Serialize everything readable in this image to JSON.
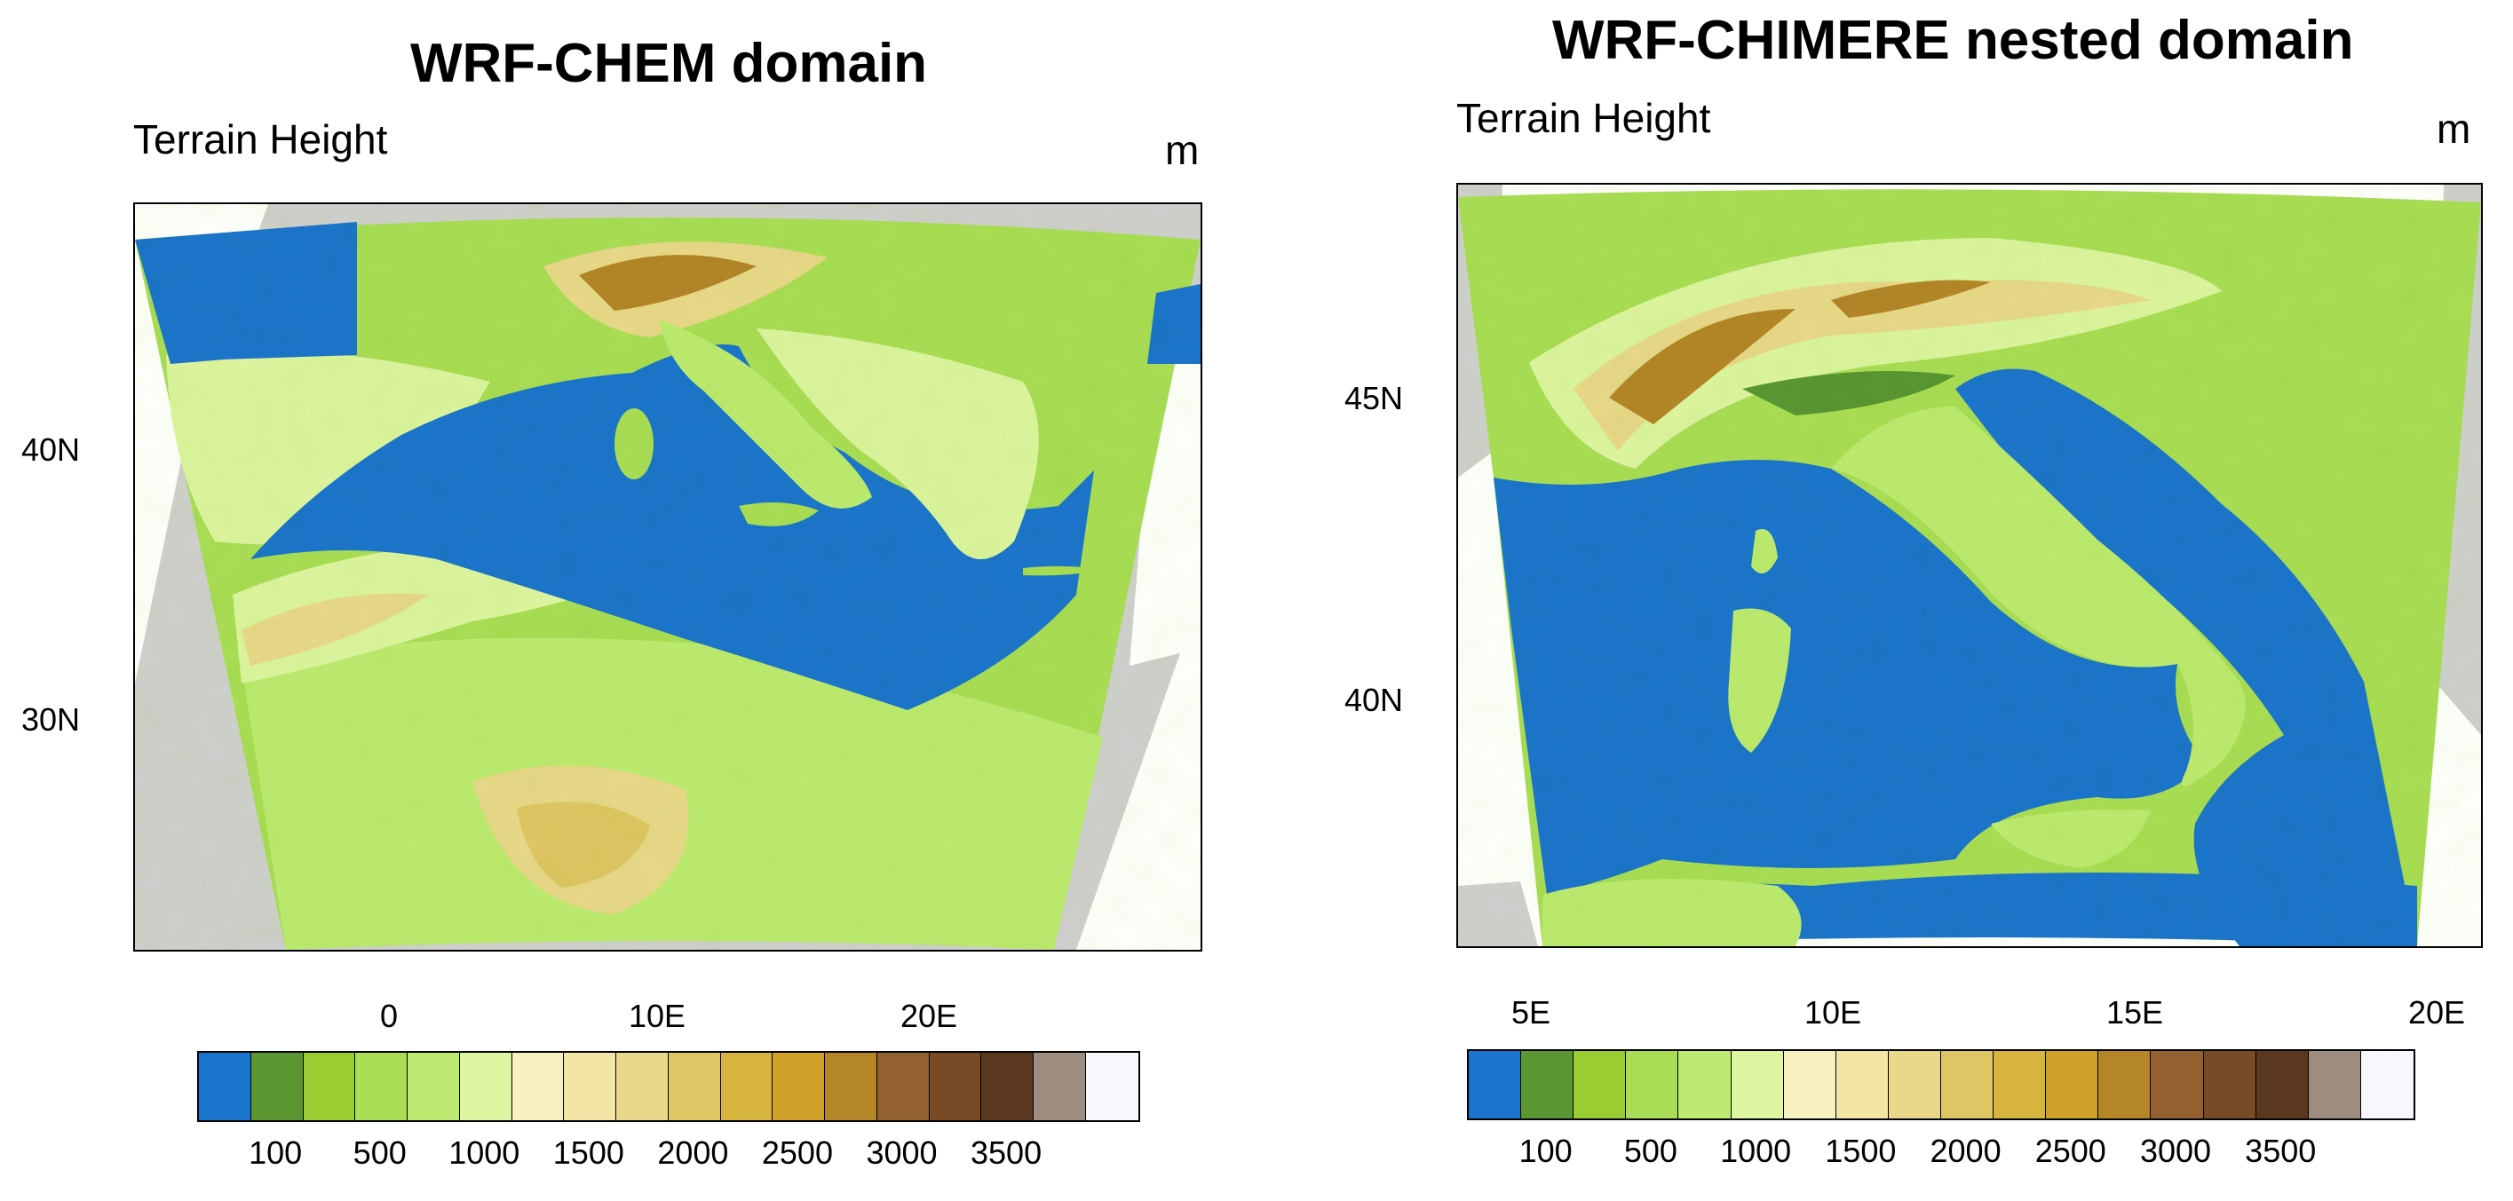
{
  "colors": {
    "water": "#1b75cf",
    "land_outside": "#d0d0d0",
    "levels": [
      "#1b75cf",
      "#5a9631",
      "#9acd32",
      "#a9dd55",
      "#bdea70",
      "#ddf4a0",
      "#f7f1c2",
      "#f2e5a5",
      "#e9d88a",
      "#dfc664",
      "#d7b43e",
      "#cfa128",
      "#b48627",
      "#946230",
      "#784a26",
      "#5a3820",
      "#9f8c80",
      "#f7f8fd"
    ]
  },
  "colorbar_labels": [
    "100",
    "500",
    "1000",
    "1500",
    "2000",
    "2500",
    "3000",
    "3500"
  ],
  "panels": [
    {
      "id": "left",
      "title": "WRF-CHEM domain",
      "subtitle": "Terrain Height",
      "units": "m",
      "lat_labels": [
        "40N",
        "30N"
      ],
      "lon_labels": [
        "0",
        "10E",
        "20E"
      ],
      "extent": {
        "lon": [
          -10,
          29.5
        ],
        "lat": [
          21.5,
          48.5
        ]
      }
    },
    {
      "id": "right",
      "title": "WRF-CHIMERE nested domain",
      "subtitle": "Terrain Height",
      "units": "m",
      "lat_labels": [
        "45N",
        "40N"
      ],
      "lon_labels": [
        "5E",
        "10E",
        "15E",
        "20E"
      ],
      "extent": {
        "lon": [
          3.8,
          20.5
        ],
        "lat": [
          36.0,
          48.5
        ]
      }
    }
  ]
}
